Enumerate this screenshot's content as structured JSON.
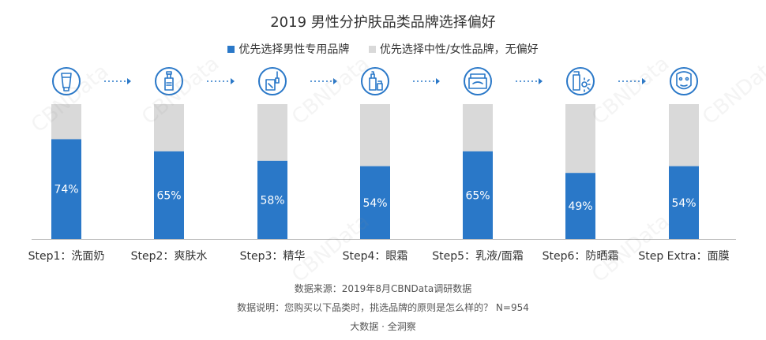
{
  "colors": {
    "accent": "#2a78c8",
    "rest": "#d9d9d9",
    "icon": "#2a78c8",
    "arrow": "#2a78c8",
    "axis": "#bdbdbd"
  },
  "legend": {
    "series1": "优先选择男性专用品牌",
    "series2": "优先选择中性/女性品牌，无偏好"
  },
  "chart_data": {
    "type": "bar",
    "stacked": true,
    "title": "2019 男性分护肤品类品牌选择偏好",
    "categories": [
      "Step1：洗面奶",
      "Step2：爽肤水",
      "Step3：精华",
      "Step4：眼霜",
      "Step5：乳液/面霜",
      "Step6：防晒霜",
      "Step Extra：面膜"
    ],
    "series": [
      {
        "name": "优先选择男性专用品牌",
        "values": [
          74,
          65,
          58,
          54,
          65,
          49,
          54
        ]
      },
      {
        "name": "优先选择中性/女性品牌，无偏好",
        "values": [
          26,
          35,
          42,
          46,
          35,
          51,
          46
        ]
      }
    ],
    "data_labels": [
      "74%",
      "65%",
      "58%",
      "54%",
      "65%",
      "49%",
      "54%"
    ],
    "ylim": [
      0,
      100
    ],
    "icons": [
      "cleanser-tube-icon",
      "toner-bottle-icon",
      "serum-dropper-icon",
      "eye-cream-icon",
      "cream-jar-icon",
      "sunscreen-icon",
      "face-mask-icon"
    ]
  },
  "source": {
    "line1": "数据来源：2019年8月CBNData调研数据",
    "line2": "数据说明：您购买以下品类时，挑选品牌的原则是怎么样的？ N=954",
    "line3": "大数据 · 全洞察"
  },
  "watermark": "CBNData"
}
